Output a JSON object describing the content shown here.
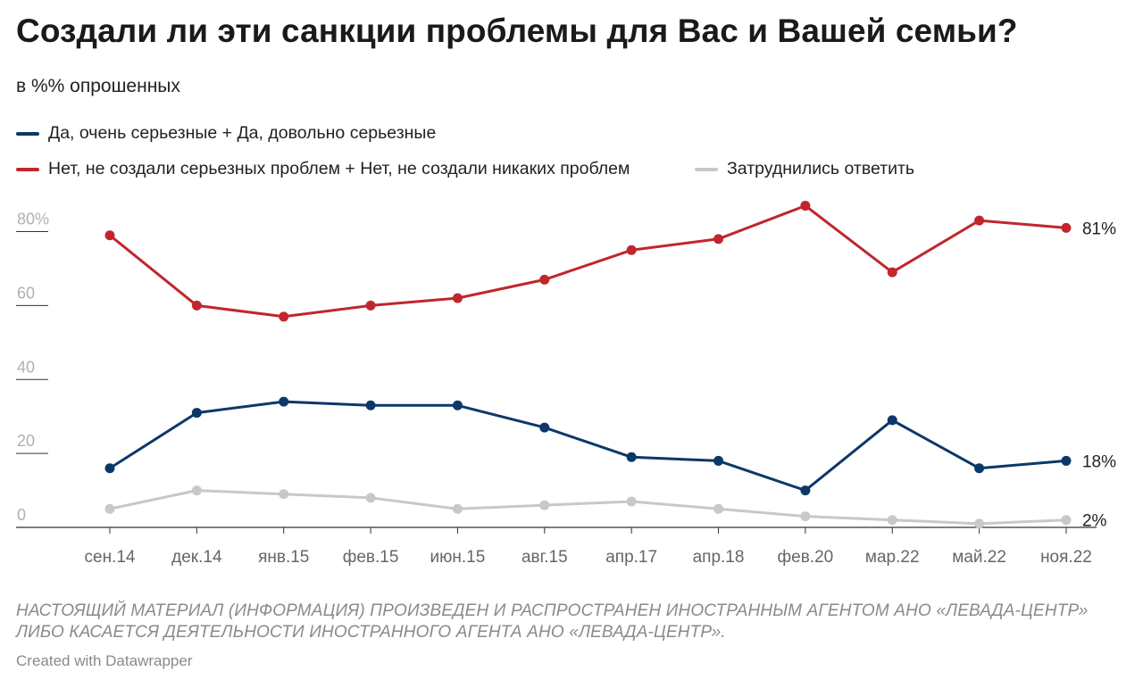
{
  "title": "Создали ли эти санкции проблемы для Вас и Вашей семьи?",
  "subtitle": "в %% опрошенных",
  "legend": [
    {
      "label": "Да, очень серьезные + Да, довольно серьезные",
      "color": "#0b3868"
    },
    {
      "label": "Нет, не создали серьезных проблем + Нет, не создали никаких проблем",
      "color": "#c0262c"
    },
    {
      "label": "Затруднились ответить",
      "color": "#c8c8c8"
    }
  ],
  "chart_data": {
    "type": "line",
    "x": [
      "сен.14",
      "дек.14",
      "янв.15",
      "фев.15",
      "июн.15",
      "авг.15",
      "апр.17",
      "апр.18",
      "фев.20",
      "мар.22",
      "май.22",
      "ноя.22"
    ],
    "series": [
      {
        "name": "Нет, не создали серьезных проблем + Нет, не создали никаких проблем",
        "color": "#c0262c",
        "values": [
          79,
          60,
          57,
          60,
          62,
          67,
          75,
          78,
          87,
          69,
          83,
          81
        ],
        "end_label": "81%"
      },
      {
        "name": "Да, очень серьезные + Да, довольно серьезные",
        "color": "#0b3868",
        "values": [
          16,
          31,
          34,
          33,
          33,
          27,
          19,
          18,
          10,
          29,
          16,
          18
        ],
        "end_label": "18%"
      },
      {
        "name": "Затруднились ответить",
        "color": "#c8c8c8",
        "values": [
          5,
          10,
          9,
          8,
          5,
          6,
          7,
          5,
          3,
          2,
          1,
          2
        ],
        "end_label": "2%"
      }
    ],
    "yticks": [
      {
        "value": 0,
        "label": "0"
      },
      {
        "value": 20,
        "label": "20"
      },
      {
        "value": 40,
        "label": "40"
      },
      {
        "value": 60,
        "label": "60"
      },
      {
        "value": 80,
        "label": "80%"
      }
    ],
    "ylim": [
      0,
      85
    ],
    "grid": false,
    "legend_position": "top-left"
  },
  "footer": {
    "note": "НАСТОЯЩИЙ МАТЕРИАЛ (ИНФОРМАЦИЯ) ПРОИЗВЕДЕН И РАСПРОСТРАНЕН ИНОСТРАННЫМ АГЕНТОМ АНО «ЛЕВАДА-ЦЕНТР» ЛИБО КАСАЕТСЯ ДЕЯТЕЛЬНОСТИ ИНОСТРАННОГО АГЕНТА АНО «ЛЕВАДА-ЦЕНТР».",
    "credit": "Created with Datawrapper"
  }
}
